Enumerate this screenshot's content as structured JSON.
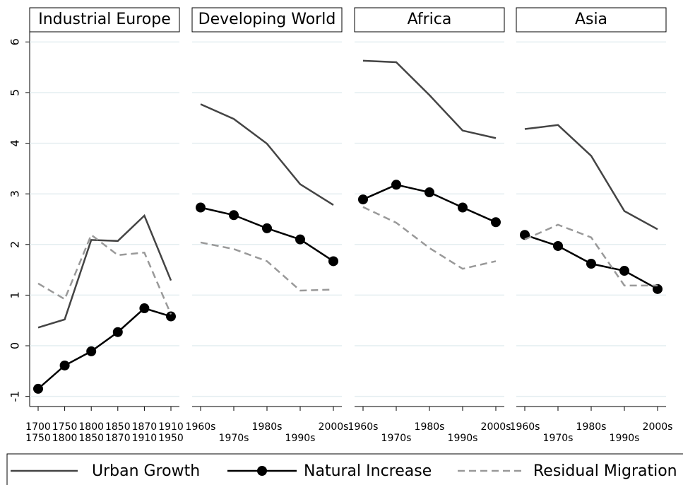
{
  "chart_data": [
    {
      "type": "line",
      "title": "Industrial Europe",
      "categories": [
        [
          "1700",
          "1750"
        ],
        [
          "1750",
          "1800"
        ],
        [
          "1800",
          "1850"
        ],
        [
          "1850",
          "1870"
        ],
        [
          "1870",
          "1910"
        ],
        [
          "1910",
          "1950"
        ]
      ],
      "ylim": [
        -1.2,
        6.2
      ],
      "yticks": [
        -1,
        0,
        1,
        2,
        3,
        4,
        5,
        6
      ],
      "grid": true,
      "series": [
        {
          "name": "Urban Growth",
          "color": "#444444",
          "dash": false,
          "marker": false,
          "values": [
            0.36,
            0.52,
            2.09,
            2.07,
            2.57,
            1.29
          ]
        },
        {
          "name": "Natural Increase",
          "color": "#000000",
          "dash": false,
          "marker": true,
          "values": [
            -0.85,
            -0.39,
            -0.11,
            0.27,
            0.74,
            0.58
          ]
        },
        {
          "name": "Residual Migration",
          "color": "#999999",
          "dash": true,
          "marker": false,
          "values": [
            1.23,
            0.92,
            2.19,
            1.79,
            1.84,
            0.62
          ]
        }
      ]
    },
    {
      "type": "line",
      "title": "Developing World",
      "categories": [
        "1960s",
        "1970s",
        "1980s",
        "1990s",
        "2000s"
      ],
      "series": [
        {
          "color": "#444444",
          "dash": false,
          "marker": false,
          "values": [
            4.77,
            4.48,
            3.99,
            3.19,
            2.78
          ]
        },
        {
          "color": "#000000",
          "dash": false,
          "marker": true,
          "values": [
            2.73,
            2.58,
            2.32,
            2.1,
            1.67
          ]
        },
        {
          "color": "#999999",
          "dash": true,
          "marker": false,
          "values": [
            2.04,
            1.91,
            1.67,
            1.09,
            1.11
          ]
        }
      ]
    },
    {
      "type": "line",
      "title": "Africa",
      "categories": [
        "1960s",
        "1970s",
        "1980s",
        "1990s",
        "2000s"
      ],
      "series": [
        {
          "color": "#444444",
          "dash": false,
          "marker": false,
          "values": [
            5.63,
            5.6,
            4.95,
            4.25,
            4.1
          ]
        },
        {
          "color": "#000000",
          "dash": false,
          "marker": true,
          "values": [
            2.89,
            3.18,
            3.03,
            2.73,
            2.44
          ]
        },
        {
          "color": "#999999",
          "dash": true,
          "marker": false,
          "values": [
            2.74,
            2.43,
            1.93,
            1.52,
            1.67
          ]
        }
      ]
    },
    {
      "type": "line",
      "title": "Asia",
      "categories": [
        "1960s",
        "1970s",
        "1980s",
        "1990s",
        "2000s"
      ],
      "series": [
        {
          "color": "#444444",
          "dash": false,
          "marker": false,
          "values": [
            4.28,
            4.36,
            3.75,
            2.66,
            2.3
          ]
        },
        {
          "color": "#000000",
          "dash": false,
          "marker": true,
          "values": [
            2.19,
            1.97,
            1.62,
            1.48,
            1.12
          ]
        },
        {
          "color": "#999999",
          "dash": true,
          "marker": false,
          "values": [
            2.1,
            2.39,
            2.14,
            1.19,
            1.19
          ]
        }
      ]
    }
  ]
}
